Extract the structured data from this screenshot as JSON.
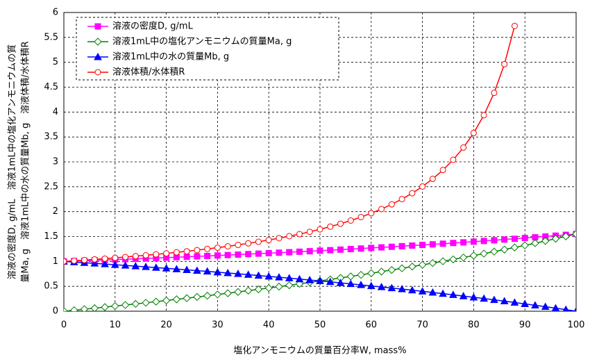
{
  "chart_data": {
    "type": "line",
    "xlabel": "塩化アンモニウムの質量百分率W, mass%",
    "ylabel": [
      "溶液の密度D, g/mL　溶液1mL中の塩化アンモニウムの質",
      "量Ma, g　溶液1mL中の水の質量Mb, g　溶液体積/水体積R"
    ],
    "x": [
      0,
      2,
      4,
      6,
      8,
      10,
      12,
      14,
      16,
      18,
      20,
      22,
      24,
      26,
      28,
      30,
      32,
      34,
      36,
      38,
      40,
      42,
      44,
      46,
      48,
      50,
      52,
      54,
      56,
      58,
      60,
      62,
      64,
      66,
      68,
      70,
      72,
      74,
      76,
      78,
      80,
      82,
      84,
      86,
      88,
      90,
      92,
      94,
      96,
      98,
      100
    ],
    "xlim": [
      0,
      100
    ],
    "xticks": [
      0,
      10,
      20,
      30,
      40,
      50,
      60,
      70,
      80,
      90,
      100
    ],
    "ylim": [
      0,
      6
    ],
    "yticks": [
      0,
      0.5,
      1,
      1.5,
      2,
      2.5,
      3,
      3.5,
      4,
      4.5,
      5,
      5.5,
      6
    ],
    "grid": true,
    "legend": "upper left",
    "series": [
      {
        "name": "溶液の密度D, g/mL",
        "color": "#ff00ff",
        "marker": "square",
        "values": [
          1.0,
          1.007,
          1.014,
          1.022,
          1.029,
          1.037,
          1.045,
          1.052,
          1.06,
          1.068,
          1.076,
          1.085,
          1.093,
          1.102,
          1.11,
          1.119,
          1.128,
          1.137,
          1.147,
          1.156,
          1.166,
          1.175,
          1.185,
          1.195,
          1.205,
          1.216,
          1.226,
          1.237,
          1.248,
          1.259,
          1.271,
          1.282,
          1.294,
          1.306,
          1.318,
          1.331,
          1.343,
          1.356,
          1.37,
          1.383,
          1.397,
          1.411,
          1.425,
          1.44,
          1.454,
          1.47,
          1.485,
          1.501,
          1.517,
          1.534,
          1.55
        ]
      },
      {
        "name": "溶液1mL中の塩化アンモニウムの質量Ma, g",
        "color": "#008000",
        "marker": "diamond",
        "values": [
          0.0,
          0.02,
          0.041,
          0.061,
          0.082,
          0.104,
          0.125,
          0.147,
          0.17,
          0.192,
          0.215,
          0.239,
          0.262,
          0.286,
          0.311,
          0.336,
          0.361,
          0.387,
          0.413,
          0.439,
          0.466,
          0.494,
          0.521,
          0.55,
          0.579,
          0.608,
          0.638,
          0.668,
          0.699,
          0.73,
          0.762,
          0.795,
          0.828,
          0.862,
          0.896,
          0.932,
          0.967,
          1.004,
          1.041,
          1.079,
          1.117,
          1.157,
          1.197,
          1.238,
          1.28,
          1.323,
          1.366,
          1.411,
          1.456,
          1.503,
          1.55
        ]
      },
      {
        "name": "溶液1mL中の水の質量Mb, g",
        "color": "#0000ff",
        "marker": "triangle",
        "values": [
          1.0,
          0.987,
          0.974,
          0.961,
          0.947,
          0.933,
          0.919,
          0.905,
          0.891,
          0.876,
          0.861,
          0.846,
          0.831,
          0.815,
          0.8,
          0.783,
          0.767,
          0.751,
          0.734,
          0.717,
          0.699,
          0.682,
          0.664,
          0.645,
          0.627,
          0.608,
          0.589,
          0.569,
          0.549,
          0.529,
          0.508,
          0.487,
          0.466,
          0.444,
          0.422,
          0.399,
          0.376,
          0.353,
          0.329,
          0.304,
          0.279,
          0.254,
          0.228,
          0.202,
          0.175,
          0.147,
          0.119,
          0.09,
          0.061,
          0.031,
          0.0
        ]
      },
      {
        "name": "溶液体積/水体積R",
        "color": "#ff0000",
        "marker": "circle",
        "values": [
          1.0,
          1.013,
          1.027,
          1.041,
          1.056,
          1.072,
          1.088,
          1.105,
          1.123,
          1.142,
          1.161,
          1.182,
          1.204,
          1.227,
          1.251,
          1.276,
          1.303,
          1.332,
          1.363,
          1.395,
          1.43,
          1.467,
          1.507,
          1.549,
          1.595,
          1.645,
          1.699,
          1.757,
          1.821,
          1.891,
          1.968,
          2.052,
          2.147,
          2.252,
          2.371,
          2.505,
          2.659,
          2.836,
          3.042,
          3.287,
          3.58,
          3.938,
          4.386,
          4.962,
          5.73,
          null,
          null,
          null,
          null,
          null,
          null
        ]
      }
    ]
  }
}
